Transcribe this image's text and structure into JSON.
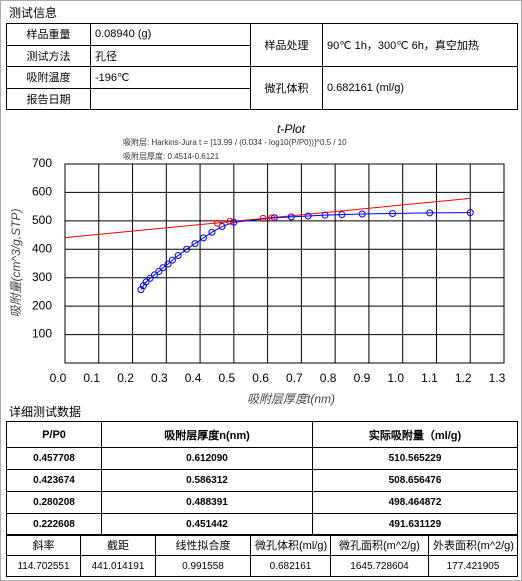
{
  "header": {
    "title": "测试信息"
  },
  "info": {
    "left": [
      {
        "label": "样品重量",
        "value": "0.08940 (g)"
      },
      {
        "label": "测试方法",
        "value": "孔径"
      },
      {
        "label": "吸附温度",
        "value": "-196℃"
      },
      {
        "label": "报告日期"
      }
    ],
    "right": [
      {
        "label": "样品处理",
        "value": "90℃ 1h，300℃ 6h，真空加热"
      },
      {
        "label": "微孔体积",
        "value": "0.682161 (ml/g)"
      }
    ]
  },
  "chart_data": {
    "type": "line",
    "title": "t-Plot",
    "annotations": [
      "吸附层: Harkins-Jura t = [13.99 / (0.034 - log10(P/P0))]^0.5 / 10",
      "吸附层厚度: 0.4514-0.6121"
    ],
    "x_label": "吸附层厚度t(nm)",
    "y_label": "吸附量(cm^3/g,STP)",
    "xlim": [
      0,
      1.3
    ],
    "ylim": [
      0,
      700
    ],
    "xticks": [
      {
        "value": 0,
        "label": "0.0"
      },
      0.1,
      0.2,
      0.3,
      0.4,
      0.5,
      0.6,
      0.7,
      0.8,
      0.9,
      {
        "value": 1,
        "label": "1.0"
      },
      1.1,
      1.2,
      1.3
    ],
    "yticks": [
      100,
      200,
      300,
      400,
      500,
      600,
      700
    ],
    "grid": true,
    "series": [
      {
        "color": "#ff0000",
        "line": true,
        "marker": false,
        "x": [
          0,
          1.2
        ],
        "values": [
          441,
          579
        ]
      },
      {
        "color": "#0000ff",
        "line": true,
        "marker": true,
        "x": [
          0.225,
          0.232,
          0.24,
          0.252,
          0.265,
          0.278,
          0.29,
          0.305,
          0.318,
          0.335,
          0.36,
          0.385,
          0.41,
          0.435,
          0.465,
          0.5,
          0.62,
          0.67,
          0.72,
          0.77,
          0.82,
          0.88,
          0.97,
          1.08,
          1.2
        ],
        "values": [
          258,
          272,
          285,
          298,
          310,
          322,
          335,
          348,
          362,
          378,
          400,
          420,
          440,
          460,
          480,
          495,
          511,
          514,
          517,
          520,
          522,
          524,
          526,
          528,
          529
        ]
      },
      {
        "color": "#ff0000",
        "line": false,
        "marker": true,
        "x": [
          0.451442,
          0.488391,
          0.586312,
          0.61209
        ],
        "values": [
          491.631129,
          498.464872,
          508.656476,
          510.565229
        ]
      }
    ]
  },
  "detail": {
    "title": "详细测试数据",
    "columns": [
      "P/P0",
      "吸附层厚度n(nm)",
      "实际吸附量（ml/g)"
    ],
    "rows": [
      [
        "0.457708",
        "0.612090",
        "510.565229"
      ],
      [
        "0.423674",
        "0.586312",
        "508.656476"
      ],
      [
        "0.280208",
        "0.488391",
        "498.464872"
      ],
      [
        "0.222608",
        "0.451442",
        "491.631129"
      ]
    ],
    "summary_columns": [
      "斜率",
      "截距",
      "线性拟合度",
      "微孔体积(ml/g)",
      "微孔面积(m^2/g)",
      "外表面积(m^2/g)"
    ],
    "summary_values": [
      "114.702551",
      "441.014191",
      "0.991558",
      "0.682161",
      "1645.728604",
      "177.421905"
    ]
  }
}
